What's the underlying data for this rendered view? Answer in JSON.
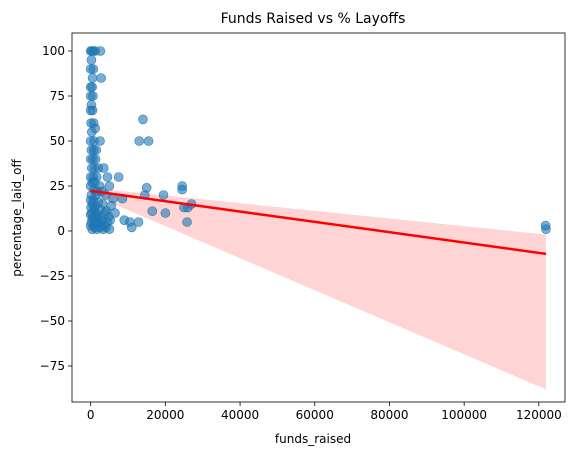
{
  "chart_data": {
    "type": "scatter",
    "title": "Funds Raised vs % Layoffs",
    "xlabel": "funds_raised",
    "ylabel": "percentage_laid_off",
    "xlim": [
      -5000,
      127000
    ],
    "ylim": [
      -95,
      110
    ],
    "xticks": [
      0,
      20000,
      40000,
      60000,
      80000,
      100000,
      120000
    ],
    "xtick_labels": [
      "0",
      "20000",
      "40000",
      "60000",
      "80000",
      "100000",
      "120000"
    ],
    "yticks": [
      -75,
      -50,
      -25,
      0,
      25,
      50,
      75,
      100
    ],
    "ytick_labels": [
      "−75",
      "−50",
      "−25",
      "0",
      "25",
      "50",
      "75",
      "100"
    ],
    "grid": false,
    "colors": {
      "points": "#1f77b4",
      "regression_line": "#ff0000",
      "confidence_band": "#ffcccc"
    },
    "regression": {
      "x": [
        0,
        121900
      ],
      "y": [
        22.3,
        -12.7
      ]
    },
    "confidence_band": {
      "x": [
        0,
        121900
      ],
      "lower": [
        20.5,
        -88
      ],
      "upper": [
        24.0,
        -2
      ]
    },
    "points": [
      {
        "x": 0,
        "y": 100
      },
      {
        "x": 300,
        "y": 100
      },
      {
        "x": 700,
        "y": 100
      },
      {
        "x": 1200,
        "y": 100
      },
      {
        "x": 2600,
        "y": 100
      },
      {
        "x": 200,
        "y": 95
      },
      {
        "x": 0,
        "y": 90
      },
      {
        "x": 700,
        "y": 90
      },
      {
        "x": 500,
        "y": 85
      },
      {
        "x": 2800,
        "y": 85
      },
      {
        "x": 0,
        "y": 80
      },
      {
        "x": 400,
        "y": 80
      },
      {
        "x": 0,
        "y": 75
      },
      {
        "x": 600,
        "y": 75
      },
      {
        "x": 200,
        "y": 70
      },
      {
        "x": 0,
        "y": 67
      },
      {
        "x": 500,
        "y": 67
      },
      {
        "x": 100,
        "y": 60
      },
      {
        "x": 800,
        "y": 60
      },
      {
        "x": 1200,
        "y": 57
      },
      {
        "x": 300,
        "y": 55
      },
      {
        "x": 0,
        "y": 50
      },
      {
        "x": 900,
        "y": 50
      },
      {
        "x": 2500,
        "y": 50
      },
      {
        "x": 200,
        "y": 45
      },
      {
        "x": 800,
        "y": 45
      },
      {
        "x": 1500,
        "y": 45
      },
      {
        "x": 0,
        "y": 40
      },
      {
        "x": 600,
        "y": 40
      },
      {
        "x": 1300,
        "y": 40
      },
      {
        "x": 300,
        "y": 35
      },
      {
        "x": 1000,
        "y": 35
      },
      {
        "x": 2000,
        "y": 35
      },
      {
        "x": 3500,
        "y": 35
      },
      {
        "x": 0,
        "y": 30
      },
      {
        "x": 700,
        "y": 30
      },
      {
        "x": 1600,
        "y": 30
      },
      {
        "x": 4500,
        "y": 30
      },
      {
        "x": 7500,
        "y": 30
      },
      {
        "x": 400,
        "y": 27
      },
      {
        "x": 1100,
        "y": 27
      },
      {
        "x": 2400,
        "y": 25
      },
      {
        "x": 5000,
        "y": 25
      },
      {
        "x": 0,
        "y": 25
      },
      {
        "x": 900,
        "y": 23
      },
      {
        "x": 1800,
        "y": 22
      },
      {
        "x": 3000,
        "y": 22
      },
      {
        "x": 200,
        "y": 20
      },
      {
        "x": 1400,
        "y": 20
      },
      {
        "x": 4000,
        "y": 20
      },
      {
        "x": 6000,
        "y": 18
      },
      {
        "x": 8500,
        "y": 18
      },
      {
        "x": 0,
        "y": 17
      },
      {
        "x": 700,
        "y": 17
      },
      {
        "x": 2000,
        "y": 16
      },
      {
        "x": 3200,
        "y": 15
      },
      {
        "x": 500,
        "y": 15
      },
      {
        "x": 1200,
        "y": 14
      },
      {
        "x": 5500,
        "y": 14
      },
      {
        "x": 100,
        "y": 13
      },
      {
        "x": 900,
        "y": 12
      },
      {
        "x": 2600,
        "y": 12
      },
      {
        "x": 4200,
        "y": 11
      },
      {
        "x": 300,
        "y": 10
      },
      {
        "x": 1500,
        "y": 10
      },
      {
        "x": 3800,
        "y": 10
      },
      {
        "x": 6500,
        "y": 10
      },
      {
        "x": 0,
        "y": 9
      },
      {
        "x": 1000,
        "y": 8
      },
      {
        "x": 2200,
        "y": 8
      },
      {
        "x": 4800,
        "y": 8
      },
      {
        "x": 500,
        "y": 7
      },
      {
        "x": 1800,
        "y": 7
      },
      {
        "x": 3000,
        "y": 6
      },
      {
        "x": 5200,
        "y": 6
      },
      {
        "x": 200,
        "y": 5
      },
      {
        "x": 1300,
        "y": 5
      },
      {
        "x": 2700,
        "y": 5
      },
      {
        "x": 4400,
        "y": 5
      },
      {
        "x": 800,
        "y": 4
      },
      {
        "x": 2000,
        "y": 4
      },
      {
        "x": 3600,
        "y": 3
      },
      {
        "x": 0,
        "y": 3
      },
      {
        "x": 1100,
        "y": 2
      },
      {
        "x": 2500,
        "y": 2
      },
      {
        "x": 4100,
        "y": 2
      },
      {
        "x": 400,
        "y": 1
      },
      {
        "x": 1600,
        "y": 1
      },
      {
        "x": 3300,
        "y": 1
      },
      {
        "x": 5000,
        "y": 1
      },
      {
        "x": 9000,
        "y": 6
      },
      {
        "x": 10500,
        "y": 5
      },
      {
        "x": 12800,
        "y": 5
      },
      {
        "x": 11000,
        "y": 2
      },
      {
        "x": 13000,
        "y": 50
      },
      {
        "x": 14000,
        "y": 62
      },
      {
        "x": 15500,
        "y": 50
      },
      {
        "x": 14500,
        "y": 20
      },
      {
        "x": 15000,
        "y": 24
      },
      {
        "x": 16500,
        "y": 11
      },
      {
        "x": 19500,
        "y": 20
      },
      {
        "x": 20000,
        "y": 10
      },
      {
        "x": 24500,
        "y": 25
      },
      {
        "x": 24500,
        "y": 23
      },
      {
        "x": 25000,
        "y": 13
      },
      {
        "x": 26000,
        "y": 13
      },
      {
        "x": 25800,
        "y": 5
      },
      {
        "x": 27000,
        "y": 15
      },
      {
        "x": 121800,
        "y": 3
      },
      {
        "x": 121900,
        "y": 1
      }
    ]
  }
}
